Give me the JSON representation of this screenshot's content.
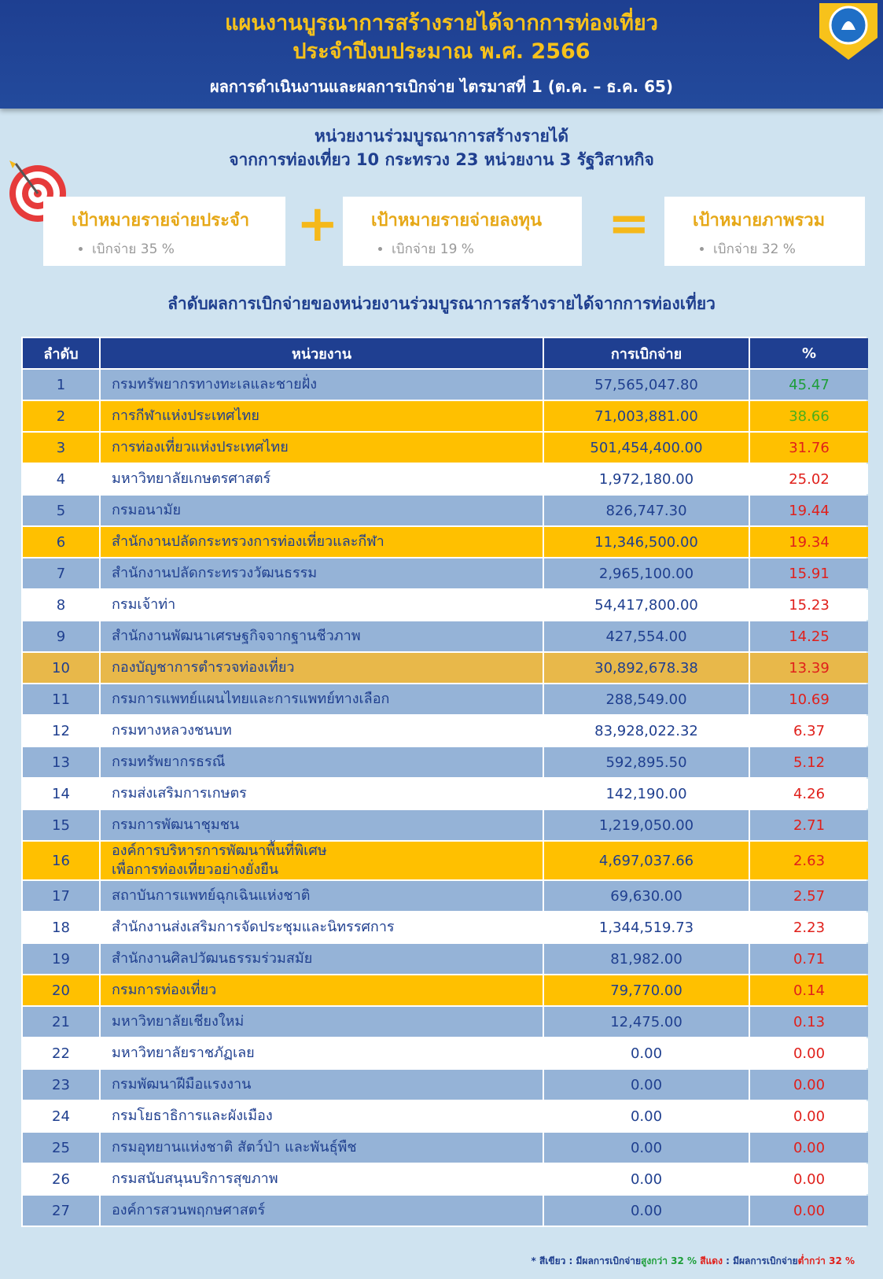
{
  "header": {
    "title_lines": [
      "แผนงานบูรณาการสร้างรายได้จากการท่องเที่ยว",
      "ประจำปีงบประมาณ พ.ศ. 2566"
    ],
    "subtitle": "ผลการดำเนินงานและผลการเบิกจ่าย ไตรมาสที่ 1 (ต.ค. – ธ.ค. 65)"
  },
  "intro": {
    "lines": [
      "หน่วยงานร่วมบูรณาการสร้างรายได้",
      "จากการท่องเที่ยว 10 กระทรวง 23 หน่วยงาน 3 รัฐวิสาหกิจ"
    ]
  },
  "targets": [
    {
      "title": "เป้าหมายรายจ่ายประจำ",
      "detail": "เบิกจ่าย 35 %"
    },
    {
      "title": "เป้าหมายรายจ่ายลงทุน",
      "detail": "เบิกจ่าย 19 %"
    },
    {
      "title": "เป้าหมายภาพรวม",
      "detail": "เบิกจ่าย 32 %"
    }
  ],
  "table": {
    "heading": "ลำดับผลการเบิกจ่ายของหน่วยงานร่วมบูรณาการสร้างรายได้จากการท่องเที่ยว",
    "columns": [
      "ลำดับ",
      "หน่วยงาน",
      "การเบิกจ่าย",
      "%"
    ],
    "rows": [
      {
        "rank": "1",
        "name": "กรมทรัพยากรทางทะเลและชายฝั่ง",
        "amount": "57,565,047.80",
        "pct": "45.47",
        "bg": "#95b3d7",
        "pct_color": "#1e9e3a"
      },
      {
        "rank": "2",
        "name": "การกีฬาแห่งประเทศไทย",
        "amount": "71,003,881.00",
        "pct": "38.66",
        "bg": "#ffc000",
        "pct_color": "#4caf1a"
      },
      {
        "rank": "3",
        "name": "การท่องเที่ยวแห่งประเทศไทย",
        "amount": "501,454,400.00",
        "pct": "31.76",
        "bg": "#ffc000",
        "pct_color": "#e0201b"
      },
      {
        "rank": "4",
        "name": "มหาวิทยาลัยเกษตรศาสตร์",
        "amount": "1,972,180.00",
        "pct": "25.02",
        "bg": "#ffffff",
        "pct_color": "#e0201b"
      },
      {
        "rank": "5",
        "name": "กรมอนามัย",
        "amount": "826,747.30",
        "pct": "19.44",
        "bg": "#95b3d7",
        "pct_color": "#e0201b"
      },
      {
        "rank": "6",
        "name": "สำนักงานปลัดกระทรวงการท่องเที่ยวและกีฬา",
        "amount": "11,346,500.00",
        "pct": "19.34",
        "bg": "#ffc000",
        "pct_color": "#e0201b"
      },
      {
        "rank": "7",
        "name": "สำนักงานปลัดกระทรวงวัฒนธรรม",
        "amount": "2,965,100.00",
        "pct": "15.91",
        "bg": "#95b3d7",
        "pct_color": "#e0201b"
      },
      {
        "rank": "8",
        "name": "กรมเจ้าท่า",
        "amount": "54,417,800.00",
        "pct": "15.23",
        "bg": "#ffffff",
        "pct_color": "#e0201b"
      },
      {
        "rank": "9",
        "name": "สำนักงานพัฒนาเศรษฐกิจจากฐานชีวภาพ",
        "amount": "427,554.00",
        "pct": "14.25",
        "bg": "#95b3d7",
        "pct_color": "#e0201b"
      },
      {
        "rank": "10",
        "name": "กองบัญชาการตำรวจท่องเที่ยว",
        "amount": "30,892,678.38",
        "pct": "13.39",
        "bg": "#e8b84a",
        "pct_color": "#e0201b"
      },
      {
        "rank": "11",
        "name": "กรมการแพทย์แผนไทยและการแพทย์ทางเลือก",
        "amount": "288,549.00",
        "pct": "10.69",
        "bg": "#95b3d7",
        "pct_color": "#e0201b"
      },
      {
        "rank": "12",
        "name": "กรมทางหลวงชนบท",
        "amount": "83,928,022.32",
        "pct": "6.37",
        "bg": "#ffffff",
        "pct_color": "#e0201b"
      },
      {
        "rank": "13",
        "name": "กรมทรัพยากรธรณี",
        "amount": "592,895.50",
        "pct": "5.12",
        "bg": "#95b3d7",
        "pct_color": "#e0201b"
      },
      {
        "rank": "14",
        "name": "กรมส่งเสริมการเกษตร",
        "amount": "142,190.00",
        "pct": "4.26",
        "bg": "#ffffff",
        "pct_color": "#e0201b"
      },
      {
        "rank": "15",
        "name": "กรมการพัฒนาชุมชน",
        "amount": "1,219,050.00",
        "pct": "2.71",
        "bg": "#95b3d7",
        "pct_color": "#e0201b"
      },
      {
        "rank": "16",
        "name": "องค์การบริหารการพัฒนาพื้นที่พิเศษ\nเพื่อการท่องเที่ยวอย่างยั่งยืน",
        "amount": "4,697,037.66",
        "pct": "2.63",
        "bg": "#ffc000",
        "pct_color": "#e0201b"
      },
      {
        "rank": "17",
        "name": "สถาบันการแพทย์ฉุกเฉินแห่งชาติ",
        "amount": "69,630.00",
        "pct": "2.57",
        "bg": "#95b3d7",
        "pct_color": "#e0201b"
      },
      {
        "rank": "18",
        "name": "สำนักงานส่งเสริมการจัดประชุมและนิทรรศการ",
        "amount": "1,344,519.73",
        "pct": "2.23",
        "bg": "#ffffff",
        "pct_color": "#e0201b"
      },
      {
        "rank": "19",
        "name": "สำนักงานศิลปวัฒนธรรมร่วมสมัย",
        "amount": "81,982.00",
        "pct": "0.71",
        "bg": "#95b3d7",
        "pct_color": "#e0201b"
      },
      {
        "rank": "20",
        "name": "กรมการท่องเที่ยว",
        "amount": "79,770.00",
        "pct": "0.14",
        "bg": "#ffc000",
        "pct_color": "#e0201b"
      },
      {
        "rank": "21",
        "name": "มหาวิทยาลัยเชียงใหม่",
        "amount": "12,475.00",
        "pct": "0.13",
        "bg": "#95b3d7",
        "pct_color": "#e0201b"
      },
      {
        "rank": "22",
        "name": "มหาวิทยาลัยราชภัฏเลย",
        "amount": "0.00",
        "pct": "0.00",
        "bg": "#ffffff",
        "pct_color": "#e0201b"
      },
      {
        "rank": "23",
        "name": "กรมพัฒนาฝีมือแรงงาน",
        "amount": "0.00",
        "pct": "0.00",
        "bg": "#95b3d7",
        "pct_color": "#e0201b"
      },
      {
        "rank": "24",
        "name": "กรมโยธาธิการและผังเมือง",
        "amount": "0.00",
        "pct": "0.00",
        "bg": "#ffffff",
        "pct_color": "#e0201b"
      },
      {
        "rank": "25",
        "name": "กรมอุทยานแห่งชาติ สัตว์ป่า และพันธุ์พืช",
        "amount": "0.00",
        "pct": "0.00",
        "bg": "#95b3d7",
        "pct_color": "#e0201b"
      },
      {
        "rank": "26",
        "name": "กรมสนับสนุนบริการสุขภาพ",
        "amount": "0.00",
        "pct": "0.00",
        "bg": "#ffffff",
        "pct_color": "#e0201b"
      },
      {
        "rank": "27",
        "name": "องค์การสวนพฤกษศาสตร์",
        "amount": "0.00",
        "pct": "0.00",
        "bg": "#95b3d7",
        "pct_color": "#e0201b"
      }
    ]
  },
  "footnote": [
    {
      "text": "* สีเขียว : มีผลการเบิกจ่าย",
      "color": "#1f3f8f"
    },
    {
      "text": "สูงกว่า 32 %",
      "color": "#1e9e3a"
    },
    {
      "text": " สีแดง",
      "color": "#e0201b"
    },
    {
      "text": " : มีผลการเบิกจ่าย",
      "color": "#1f3f8f"
    },
    {
      "text": "ต่ำกว่า 32 %",
      "color": "#e0201b"
    }
  ]
}
